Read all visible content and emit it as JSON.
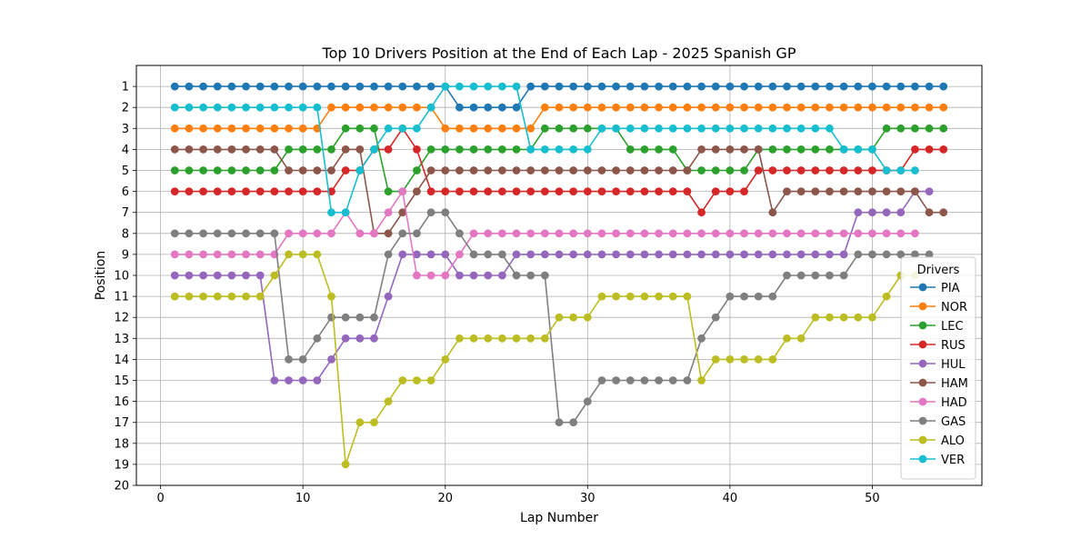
{
  "chart_data": {
    "type": "line",
    "title": "Top 10 Drivers Position at the End of Each Lap - 2025 Spanish GP",
    "xlabel": "Lap Number",
    "ylabel": "Position",
    "xlim": [
      -1.7,
      57.7
    ],
    "ylim": [
      20.0,
      0.0
    ],
    "xticks": [
      0,
      10,
      20,
      30,
      40,
      50
    ],
    "yticks": [
      1,
      2,
      3,
      4,
      5,
      6,
      7,
      8,
      9,
      10,
      11,
      12,
      13,
      14,
      15,
      16,
      17,
      18,
      19,
      20
    ],
    "y_inverted": true,
    "grid": true,
    "legend_title": "Drivers",
    "legend_position": "lower-right",
    "series": [
      {
        "name": "PIA",
        "color": "#1f77b4",
        "x_start": 1,
        "values": [
          1,
          1,
          1,
          1,
          1,
          1,
          1,
          1,
          1,
          1,
          1,
          1,
          1,
          1,
          1,
          1,
          1,
          1,
          1,
          1,
          2,
          2,
          2,
          2,
          2,
          1,
          1,
          1,
          1,
          1,
          1,
          1,
          1,
          1,
          1,
          1,
          1,
          1,
          1,
          1,
          1,
          1,
          1,
          1,
          1,
          1,
          1,
          1,
          1,
          1,
          1,
          1,
          1,
          1,
          1
        ]
      },
      {
        "name": "NOR",
        "color": "#ff7f0e",
        "x_start": 1,
        "values": [
          3,
          3,
          3,
          3,
          3,
          3,
          3,
          3,
          3,
          3,
          3,
          2,
          2,
          2,
          2,
          2,
          2,
          2,
          2,
          3,
          3,
          3,
          3,
          3,
          3,
          3,
          2,
          2,
          2,
          2,
          2,
          2,
          2,
          2,
          2,
          2,
          2,
          2,
          2,
          2,
          2,
          2,
          2,
          2,
          2,
          2,
          2,
          2,
          2,
          2,
          2,
          2,
          2,
          2,
          2
        ]
      },
      {
        "name": "LEC",
        "color": "#2ca02c",
        "x_start": 1,
        "values": [
          5,
          5,
          5,
          5,
          5,
          5,
          5,
          5,
          4,
          4,
          4,
          4,
          3,
          3,
          3,
          6,
          6,
          5,
          4,
          4,
          4,
          4,
          4,
          4,
          4,
          4,
          3,
          3,
          3,
          3,
          3,
          3,
          4,
          4,
          4,
          4,
          5,
          5,
          5,
          5,
          5,
          4,
          4,
          4,
          4,
          4,
          4,
          4,
          4,
          4,
          3,
          3,
          3,
          3,
          3
        ]
      },
      {
        "name": "RUS",
        "color": "#d62728",
        "x_start": 1,
        "values": [
          6,
          6,
          6,
          6,
          6,
          6,
          6,
          6,
          6,
          6,
          6,
          6,
          5,
          5,
          4,
          4,
          3,
          4,
          6,
          6,
          6,
          6,
          6,
          6,
          6,
          6,
          6,
          6,
          6,
          6,
          6,
          6,
          6,
          6,
          6,
          6,
          6,
          7,
          6,
          6,
          6,
          5,
          5,
          5,
          5,
          5,
          5,
          5,
          5,
          5,
          5,
          5,
          4,
          4,
          4
        ]
      },
      {
        "name": "HUL",
        "color": "#9467bd",
        "x_start": 1,
        "values": [
          10,
          10,
          10,
          10,
          10,
          10,
          10,
          15,
          15,
          15,
          15,
          14,
          13,
          13,
          13,
          11,
          9,
          9,
          9,
          9,
          10,
          10,
          10,
          10,
          9,
          9,
          9,
          9,
          9,
          9,
          9,
          9,
          9,
          9,
          9,
          9,
          9,
          9,
          9,
          9,
          9,
          9,
          9,
          9,
          9,
          9,
          9,
          9,
          7,
          7,
          7,
          7,
          6,
          6
        ]
      },
      {
        "name": "HAM",
        "color": "#8c564b",
        "x_start": 1,
        "values": [
          4,
          4,
          4,
          4,
          4,
          4,
          4,
          4,
          5,
          5,
          5,
          5,
          4,
          4,
          8,
          8,
          7,
          6,
          5,
          5,
          5,
          5,
          5,
          5,
          5,
          5,
          5,
          5,
          5,
          5,
          5,
          5,
          5,
          5,
          5,
          5,
          5,
          4,
          4,
          4,
          4,
          4,
          7,
          6,
          6,
          6,
          6,
          6,
          6,
          6,
          6,
          6,
          6,
          7,
          7
        ]
      },
      {
        "name": "HAD",
        "color": "#e377c2",
        "x_start": 1,
        "values": [
          9,
          9,
          9,
          9,
          9,
          9,
          9,
          9,
          8,
          8,
          8,
          8,
          7,
          8,
          8,
          7,
          6,
          10,
          10,
          10,
          9,
          8,
          8,
          8,
          8,
          8,
          8,
          8,
          8,
          8,
          8,
          8,
          8,
          8,
          8,
          8,
          8,
          8,
          8,
          8,
          8,
          8,
          8,
          8,
          8,
          8,
          8,
          8,
          8,
          8,
          8,
          8,
          8
        ]
      },
      {
        "name": "GAS",
        "color": "#7f7f7f",
        "x_start": 1,
        "values": [
          8,
          8,
          8,
          8,
          8,
          8,
          8,
          8,
          14,
          14,
          13,
          12,
          12,
          12,
          12,
          9,
          8,
          8,
          7,
          7,
          8,
          9,
          9,
          9,
          10,
          10,
          10,
          17,
          17,
          16,
          15,
          15,
          15,
          15,
          15,
          15,
          15,
          13,
          12,
          11,
          11,
          11,
          11,
          10,
          10,
          10,
          10,
          10,
          9,
          9,
          9,
          9,
          9,
          9
        ]
      },
      {
        "name": "ALO",
        "color": "#bcbd22",
        "x_start": 1,
        "values": [
          11,
          11,
          11,
          11,
          11,
          11,
          11,
          10,
          9,
          9,
          9,
          11,
          19,
          17,
          17,
          16,
          15,
          15,
          15,
          14,
          13,
          13,
          13,
          13,
          13,
          13,
          13,
          12,
          12,
          12,
          11,
          11,
          11,
          11,
          11,
          11,
          11,
          15,
          14,
          14,
          14,
          14,
          14,
          13,
          13,
          12,
          12,
          12,
          12,
          12,
          11,
          10,
          10
        ]
      },
      {
        "name": "VER",
        "color": "#17becf",
        "x_start": 1,
        "values": [
          2,
          2,
          2,
          2,
          2,
          2,
          2,
          2,
          2,
          2,
          2,
          7,
          7,
          5,
          4,
          3,
          3,
          3,
          2,
          1,
          1,
          1,
          1,
          1,
          1,
          4,
          4,
          4,
          4,
          4,
          3,
          3,
          3,
          3,
          3,
          3,
          3,
          3,
          3,
          3,
          3,
          3,
          3,
          3,
          3,
          3,
          3,
          4,
          4,
          4,
          5,
          5,
          5
        ]
      }
    ]
  }
}
